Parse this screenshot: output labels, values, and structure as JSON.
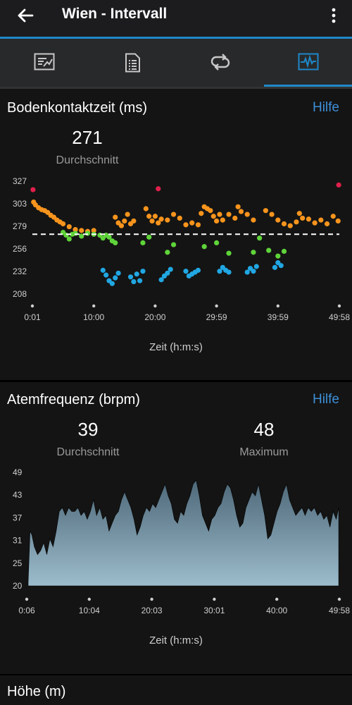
{
  "appbar": {
    "title": "Wien - Intervall",
    "back_icon": "arrow-left-icon",
    "more_icon": "more-vert-icon"
  },
  "tabs": [
    {
      "icon": "summary-chart-icon",
      "active": false
    },
    {
      "icon": "details-list-icon",
      "active": false
    },
    {
      "icon": "laps-loop-icon",
      "active": false
    },
    {
      "icon": "graphs-icon",
      "active": true
    }
  ],
  "colors": {
    "accent": "#1e88c9",
    "help": "#3d8fd8",
    "orange": "#f7941d",
    "green": "#5fd43a",
    "blue": "#21a7e3",
    "red": "#e0204c",
    "area": "#8faebf"
  },
  "gct": {
    "title": "Bodenkontaktzeit (ms)",
    "help": "Hilfe",
    "average_value": "271",
    "average_label": "Durchschnitt",
    "xlabel": "Zeit (h:m:s)"
  },
  "resp": {
    "title": "Atemfrequenz (brpm)",
    "help": "Hilfe",
    "average_value": "39",
    "average_label": "Durchschnitt",
    "max_value": "48",
    "max_label": "Maximum",
    "xlabel": "Zeit (h:m:s)"
  },
  "hoehe": {
    "title": "Höhe (m)"
  },
  "chart_data": [
    {
      "type": "scatter",
      "ylabel": "Bodenkontaktzeit (ms)",
      "xlabel": "Zeit (h:m:s)",
      "x_ticks": [
        "0:01",
        "10:00",
        "20:00",
        "29:59",
        "39:59",
        "49:58"
      ],
      "y_ticks": [
        "327",
        "303",
        "279",
        "256",
        "232",
        "208"
      ],
      "xlim_min": [
        0,
        50
      ],
      "ylim": [
        208,
        327
      ],
      "average_line": 271,
      "series": [
        {
          "color": "#f7941d",
          "points": [
            [
              0.2,
              305
            ],
            [
              0.5,
              302
            ],
            [
              1,
              299
            ],
            [
              1.5,
              297
            ],
            [
              2,
              296
            ],
            [
              2.5,
              294
            ],
            [
              3,
              291
            ],
            [
              3.5,
              289
            ],
            [
              4,
              286
            ],
            [
              4.5,
              284
            ],
            [
              5,
              282
            ],
            [
              6,
              279
            ],
            [
              7,
              276
            ],
            [
              8,
              275
            ],
            [
              9,
              274
            ],
            [
              10,
              275
            ],
            [
              13.5,
              289
            ],
            [
              14,
              283
            ],
            [
              14.5,
              280
            ],
            [
              15,
              285
            ],
            [
              15.5,
              292
            ],
            [
              16,
              282
            ],
            [
              16.5,
              285
            ],
            [
              18.5,
              298
            ],
            [
              19,
              290
            ],
            [
              19.5,
              285
            ],
            [
              20,
              290
            ],
            [
              20.5,
              283
            ],
            [
              21,
              287
            ],
            [
              22,
              286
            ],
            [
              23,
              292
            ],
            [
              24,
              288
            ],
            [
              25,
              281
            ],
            [
              26,
              283
            ],
            [
              27,
              281
            ],
            [
              27.5,
              293
            ],
            [
              28,
              300
            ],
            [
              28.5,
              298
            ],
            [
              29,
              296
            ],
            [
              29.5,
              290
            ],
            [
              30,
              285
            ],
            [
              30.5,
              292
            ],
            [
              31,
              286
            ],
            [
              32,
              292
            ],
            [
              33,
              288
            ],
            [
              33.5,
              300
            ],
            [
              34,
              295
            ],
            [
              35,
              292
            ],
            [
              36,
              286
            ],
            [
              38,
              296
            ],
            [
              39,
              292
            ],
            [
              40,
              286
            ],
            [
              41,
              282
            ],
            [
              42,
              280
            ],
            [
              43,
              284
            ],
            [
              43.5,
              293
            ],
            [
              44,
              288
            ],
            [
              45,
              287
            ],
            [
              46,
              283
            ],
            [
              47,
              286
            ],
            [
              48,
              282
            ],
            [
              49,
              290
            ],
            [
              49.8,
              285
            ]
          ]
        },
        {
          "color": "#5fd43a",
          "points": [
            [
              5,
              273
            ],
            [
              5.5,
              270
            ],
            [
              6,
              266
            ],
            [
              6.5,
              271
            ],
            [
              7,
              272
            ],
            [
              8,
              269
            ],
            [
              9,
              272
            ],
            [
              10,
              271
            ],
            [
              11,
              270
            ],
            [
              11.5,
              267
            ],
            [
              12,
              270
            ],
            [
              12.5,
              268
            ],
            [
              13,
              264
            ],
            [
              13.5,
              262
            ],
            [
              18,
              262
            ],
            [
              19,
              268
            ],
            [
              22,
              252
            ],
            [
              23,
              260
            ],
            [
              28,
              258
            ],
            [
              30,
              262
            ],
            [
              32,
              251
            ],
            [
              36,
              252
            ],
            [
              37,
              267
            ],
            [
              38.5,
              254
            ],
            [
              40,
              248
            ],
            [
              41,
              253
            ]
          ]
        },
        {
          "color": "#21a7e3",
          "points": [
            [
              11.5,
              233
            ],
            [
              12,
              228
            ],
            [
              12.5,
              222
            ],
            [
              13,
              219
            ],
            [
              13.5,
              225
            ],
            [
              14,
              230
            ],
            [
              16,
              226
            ],
            [
              16.5,
              221
            ],
            [
              17,
              229
            ],
            [
              17.5,
              222
            ],
            [
              18,
              232
            ],
            [
              21,
              223
            ],
            [
              21.5,
              227
            ],
            [
              22,
              230
            ],
            [
              22.5,
              234
            ],
            [
              25,
              232
            ],
            [
              25.5,
              227
            ],
            [
              26,
              229
            ],
            [
              26.5,
              231
            ],
            [
              27,
              233
            ],
            [
              30.5,
              232
            ],
            [
              31,
              236
            ],
            [
              31.5,
              233
            ],
            [
              32,
              231
            ],
            [
              35,
              231
            ],
            [
              35.5,
              235
            ],
            [
              36,
              232
            ],
            [
              36.5,
              237
            ],
            [
              39.5,
              236
            ],
            [
              40,
              241
            ],
            [
              40.5,
              238
            ]
          ]
        },
        {
          "color": "#e0204c",
          "points": [
            [
              0.1,
              318
            ],
            [
              20.5,
              319
            ],
            [
              49.9,
              323
            ]
          ]
        }
      ]
    },
    {
      "type": "area",
      "ylabel": "Atemfrequenz (brpm)",
      "xlabel": "Zeit (h:m:s)",
      "x_ticks": [
        "0:06",
        "10:04",
        "20:03",
        "30:01",
        "40:00",
        "49:58"
      ],
      "y_ticks": [
        "49",
        "43",
        "37",
        "31",
        "25",
        "20"
      ],
      "xlim_min": [
        0,
        50
      ],
      "ylim": [
        20,
        49
      ],
      "values": [
        [
          0,
          21
        ],
        [
          0.3,
          34
        ],
        [
          0.6,
          33
        ],
        [
          1,
          30
        ],
        [
          1.5,
          28
        ],
        [
          2,
          29
        ],
        [
          2.5,
          31
        ],
        [
          3,
          28
        ],
        [
          3.5,
          32
        ],
        [
          4,
          30
        ],
        [
          4.5,
          34
        ],
        [
          5,
          39
        ],
        [
          5.5,
          40
        ],
        [
          6,
          38
        ],
        [
          6.5,
          40
        ],
        [
          7,
          39
        ],
        [
          7.5,
          39
        ],
        [
          8,
          40
        ],
        [
          8.5,
          38
        ],
        [
          9,
          39
        ],
        [
          9.5,
          37
        ],
        [
          10,
          39
        ],
        [
          10.5,
          42
        ],
        [
          11,
          38
        ],
        [
          11.5,
          40
        ],
        [
          12,
          37
        ],
        [
          12.5,
          38
        ],
        [
          13,
          34
        ],
        [
          13.5,
          36
        ],
        [
          14,
          38
        ],
        [
          14.5,
          39
        ],
        [
          15,
          42
        ],
        [
          15.5,
          44
        ],
        [
          16,
          42
        ],
        [
          16.5,
          40
        ],
        [
          17,
          37
        ],
        [
          17.5,
          33
        ],
        [
          18,
          35
        ],
        [
          18.5,
          38
        ],
        [
          19,
          40
        ],
        [
          19.5,
          39
        ],
        [
          20,
          41
        ],
        [
          20.5,
          40
        ],
        [
          21,
          42
        ],
        [
          21.5,
          44
        ],
        [
          22,
          46
        ],
        [
          22.5,
          43
        ],
        [
          23,
          41
        ],
        [
          23.5,
          37
        ],
        [
          24,
          36
        ],
        [
          24.5,
          39
        ],
        [
          25,
          38
        ],
        [
          25.5,
          41
        ],
        [
          26,
          43
        ],
        [
          26.5,
          46
        ],
        [
          27,
          47
        ],
        [
          27.5,
          43
        ],
        [
          28,
          38
        ],
        [
          28.5,
          36
        ],
        [
          29,
          34
        ],
        [
          29.5,
          37
        ],
        [
          30,
          38
        ],
        [
          30.5,
          40
        ],
        [
          31,
          41
        ],
        [
          31.5,
          44
        ],
        [
          32,
          46
        ],
        [
          32.5,
          45
        ],
        [
          33,
          42
        ],
        [
          33.5,
          38
        ],
        [
          34,
          35
        ],
        [
          34.5,
          36
        ],
        [
          35,
          40
        ],
        [
          35.5,
          42
        ],
        [
          36,
          44
        ],
        [
          36.5,
          43
        ],
        [
          37,
          46
        ],
        [
          37.5,
          42
        ],
        [
          38,
          38
        ],
        [
          38.5,
          32
        ],
        [
          39,
          33
        ],
        [
          39.5,
          36
        ],
        [
          40,
          39
        ],
        [
          40.5,
          41
        ],
        [
          41,
          44
        ],
        [
          41.5,
          46
        ],
        [
          42,
          42
        ],
        [
          42.5,
          40
        ],
        [
          43,
          38
        ],
        [
          43.5,
          39
        ],
        [
          44,
          40
        ],
        [
          44.5,
          38
        ],
        [
          45,
          40
        ],
        [
          45.5,
          39
        ],
        [
          46,
          40
        ],
        [
          46.5,
          38
        ],
        [
          47,
          39
        ],
        [
          47.5,
          37
        ],
        [
          48,
          38
        ],
        [
          48.5,
          35
        ],
        [
          49,
          39
        ],
        [
          49.5,
          37
        ],
        [
          49.9,
          40
        ]
      ]
    }
  ]
}
